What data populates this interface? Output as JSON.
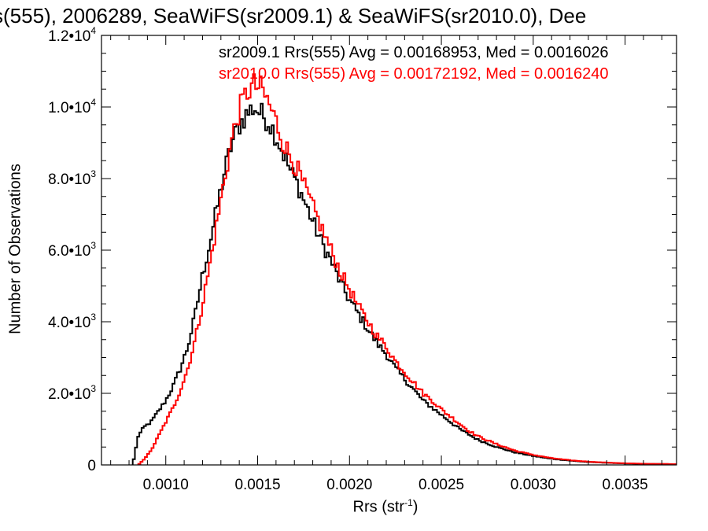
{
  "title": "s(555), 2006289, SeaWiFS(sr2009.1) & SeaWiFS(sr2010.0), Dee",
  "chart_data": {
    "type": "line",
    "subtype": "step-histogram",
    "xlabel": "Rrs (str",
    "xlabel_superscript": "-1",
    "xlabel_close": ")",
    "ylabel": "Number of Observations",
    "xlim": [
      0.00065,
      0.00378
    ],
    "ylim": [
      0,
      12000
    ],
    "grid": false,
    "xticks": [
      0.001,
      0.0015,
      0.002,
      0.0025,
      0.003,
      0.0035
    ],
    "xtick_labels": [
      "0.0010",
      "0.0015",
      "0.0020",
      "0.0025",
      "0.0030",
      "0.0035"
    ],
    "yticks": [
      {
        "value": 0,
        "mantissa": "0",
        "exp": ""
      },
      {
        "value": 2000,
        "mantissa": "2.0•10",
        "exp": "3"
      },
      {
        "value": 4000,
        "mantissa": "4.0•10",
        "exp": "3"
      },
      {
        "value": 6000,
        "mantissa": "6.0•10",
        "exp": "3"
      },
      {
        "value": 8000,
        "mantissa": "8.0•10",
        "exp": "3"
      },
      {
        "value": 10000,
        "mantissa": "1.0•10",
        "exp": "4"
      },
      {
        "value": 12000,
        "mantissa": "1.2•10",
        "exp": "4"
      }
    ],
    "series": [
      {
        "name": "sr2009.1",
        "legend_text": "sr2009.1 Rrs(555) Avg = 0.00168953, Med = 0.0016026",
        "color": "#000000",
        "bin_width": 1.2e-05,
        "x": [
          0.00082,
          0.00085,
          0.00088,
          0.00092,
          0.00096,
          0.001,
          0.00104,
          0.00108,
          0.00112,
          0.00116,
          0.0012,
          0.00124,
          0.00128,
          0.00132,
          0.00136,
          0.0014,
          0.00144,
          0.00148,
          0.00152,
          0.00156,
          0.0016,
          0.00164,
          0.00168,
          0.00172,
          0.00176,
          0.0018,
          0.00185,
          0.0019,
          0.00195,
          0.002,
          0.00205,
          0.0021,
          0.00215,
          0.0022,
          0.00225,
          0.0023,
          0.00235,
          0.0024,
          0.00245,
          0.0025,
          0.00255,
          0.0026,
          0.00265,
          0.0027,
          0.0028,
          0.0029,
          0.003,
          0.0031,
          0.0032,
          0.0033,
          0.0034,
          0.0035,
          0.0036,
          0.00378
        ],
        "y": [
          0,
          800,
          1050,
          1200,
          1500,
          1800,
          2200,
          2700,
          3300,
          4200,
          5300,
          6200,
          7200,
          8200,
          9000,
          9500,
          9800,
          10000,
          9800,
          9600,
          9200,
          8700,
          8200,
          7800,
          7300,
          6800,
          6200,
          5700,
          5100,
          4600,
          4200,
          3800,
          3400,
          3100,
          2700,
          2400,
          2100,
          1800,
          1600,
          1400,
          1200,
          1000,
          850,
          700,
          500,
          350,
          250,
          170,
          120,
          80,
          60,
          40,
          30,
          20
        ]
      },
      {
        "name": "sr2010.0",
        "legend_text": "sr2010.0 Rrs(555) Avg = 0.00172192, Med = 0.0016240",
        "color": "#ff0000",
        "bin_width": 1.2e-05,
        "x": [
          0.00085,
          0.00088,
          0.00092,
          0.00096,
          0.001,
          0.00104,
          0.00108,
          0.00112,
          0.00116,
          0.0012,
          0.00124,
          0.00128,
          0.00132,
          0.00136,
          0.0014,
          0.00144,
          0.00148,
          0.00152,
          0.00156,
          0.0016,
          0.00164,
          0.00168,
          0.00172,
          0.00176,
          0.0018,
          0.00185,
          0.0019,
          0.00195,
          0.002,
          0.00205,
          0.0021,
          0.00215,
          0.0022,
          0.00225,
          0.0023,
          0.00235,
          0.0024,
          0.00245,
          0.0025,
          0.00255,
          0.0026,
          0.00265,
          0.0027,
          0.0028,
          0.0029,
          0.003,
          0.0031,
          0.0032,
          0.0033,
          0.0034,
          0.0035,
          0.0036,
          0.00378
        ],
        "y": [
          0,
          150,
          400,
          800,
          1200,
          1600,
          2100,
          2700,
          3500,
          4500,
          5600,
          6800,
          8000,
          9100,
          9900,
          10400,
          10600,
          10500,
          10100,
          9600,
          9000,
          8600,
          8200,
          7700,
          7200,
          6600,
          6000,
          5400,
          4900,
          4400,
          4000,
          3600,
          3300,
          2900,
          2600,
          2300,
          2000,
          1800,
          1550,
          1350,
          1150,
          950,
          800,
          580,
          400,
          280,
          190,
          130,
          90,
          65,
          45,
          33,
          22
        ]
      }
    ]
  }
}
